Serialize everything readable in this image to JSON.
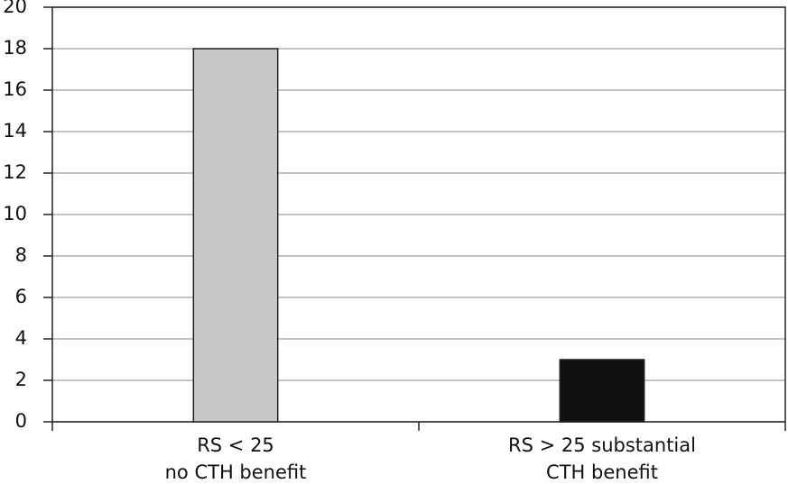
{
  "chart_data": {
    "type": "bar",
    "categories": [
      [
        "RS < 25",
        "no CTH benefit"
      ],
      [
        "RS > 25 substantial",
        "CTH benefit"
      ]
    ],
    "values": [
      18,
      3
    ],
    "colors": [
      "#c8c8c8",
      "#111111"
    ],
    "ylim": [
      0,
      20
    ],
    "yticks": [
      0,
      2,
      4,
      6,
      8,
      10,
      12,
      14,
      16,
      18,
      20
    ],
    "grid": true
  }
}
